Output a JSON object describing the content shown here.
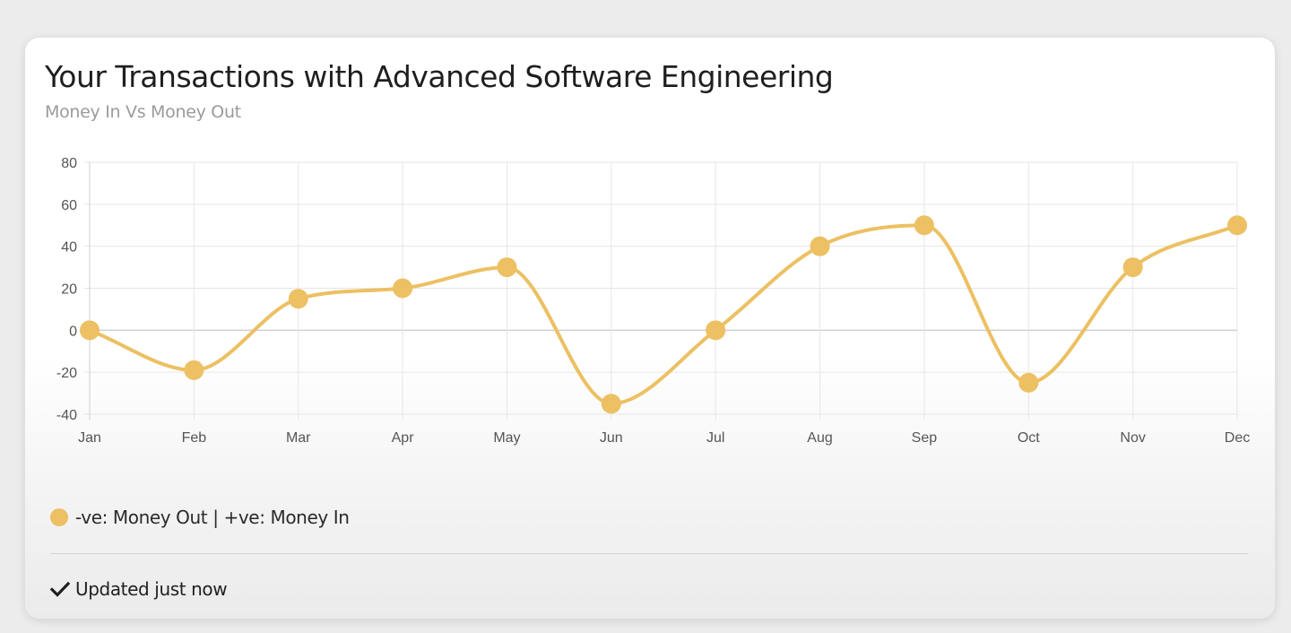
{
  "card": {
    "title": "Your Transactions with Advanced Software Engineering",
    "subtitle": "Money In Vs Money Out",
    "legend_label": "-ve: Money Out | +ve: Money In",
    "footer_text": "Updated just now"
  },
  "colors": {
    "series": "#ecc063",
    "grid": "#e6e6e6",
    "zero_line": "#cfcfcf",
    "tick_text": "#555555"
  },
  "icons": {
    "footer": "check-icon",
    "legend": "legend-dot"
  },
  "chart_data": {
    "type": "line",
    "categories": [
      "Jan",
      "Feb",
      "Mar",
      "Apr",
      "May",
      "Jun",
      "Jul",
      "Aug",
      "Sep",
      "Oct",
      "Nov",
      "Dec"
    ],
    "series": [
      {
        "name": "-ve: Money Out | +ve: Money In",
        "values": [
          0,
          -19,
          15,
          20,
          30,
          -35,
          0,
          40,
          50,
          -25,
          30,
          50
        ]
      }
    ],
    "yticks": [
      80,
      60,
      40,
      20,
      0,
      -20,
      -40
    ],
    "ylim": [
      -40,
      80
    ],
    "grid": true,
    "smooth": true,
    "legend_position": "bottom-left"
  }
}
